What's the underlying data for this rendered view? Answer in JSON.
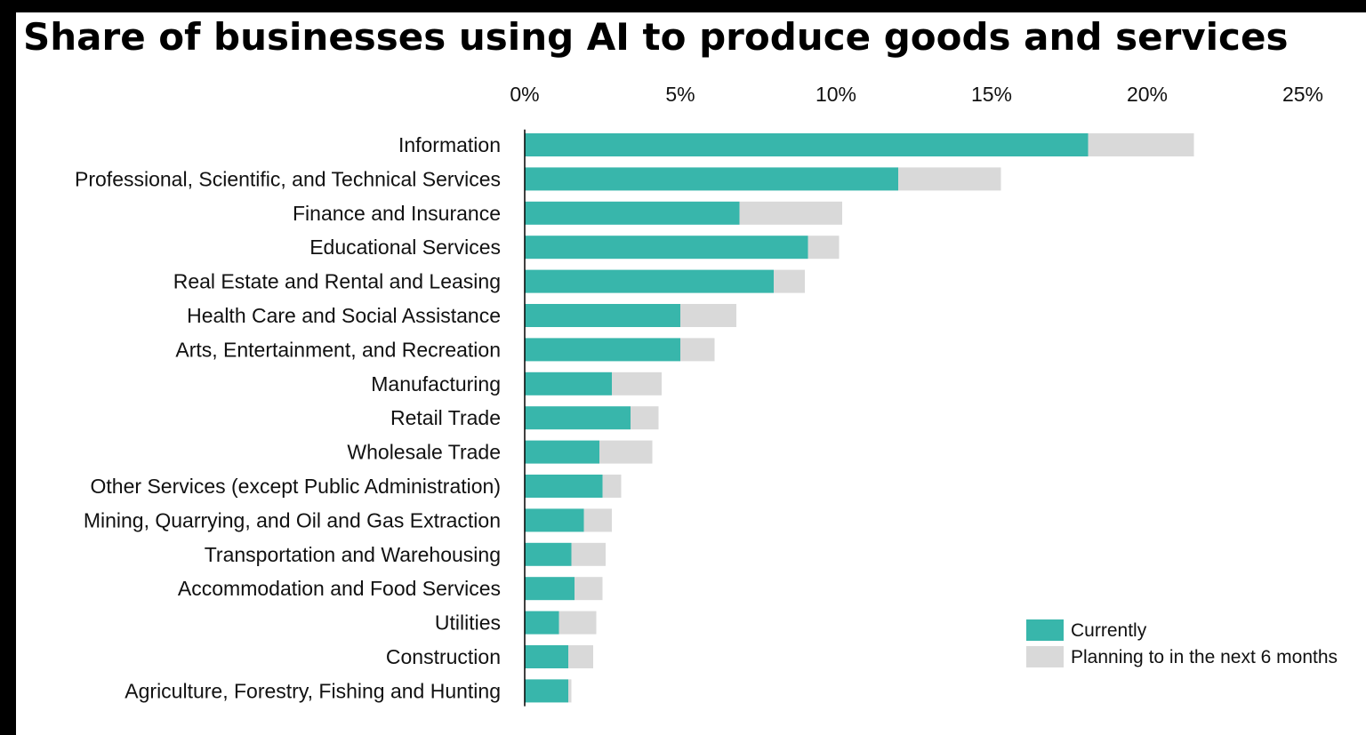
{
  "chart_data": {
    "type": "bar",
    "orientation": "horizontal",
    "stacked": true,
    "title": "Share of businesses using AI to produce goods and services",
    "xlabel": "",
    "ylabel": "",
    "xlim": [
      0,
      25
    ],
    "x_ticks": [
      0,
      5,
      10,
      15,
      20,
      25
    ],
    "x_tick_labels": [
      "0%",
      "5%",
      "10%",
      "15%",
      "20%",
      "25%"
    ],
    "x_axis_position": "top",
    "grid": false,
    "legend_position": "bottom-right",
    "categories": [
      "Information",
      "Professional, Scientific, and Technical Services",
      "Finance and Insurance",
      "Educational Services",
      "Real Estate and Rental and Leasing",
      "Health Care and Social Assistance",
      "Arts, Entertainment, and Recreation",
      "Manufacturing",
      "Retail Trade",
      "Wholesale Trade",
      "Other Services (except Public Administration)",
      "Mining, Quarrying, and Oil and Gas Extraction",
      "Transportation and Warehousing",
      "Accommodation and Food Services",
      "Utilities",
      "Construction",
      "Agriculture, Forestry, Fishing and Hunting"
    ],
    "series": [
      {
        "name": "Currently",
        "color": "#38b6ab",
        "values": [
          18.1,
          12.0,
          6.9,
          9.1,
          8.0,
          5.0,
          5.0,
          2.8,
          3.4,
          2.4,
          2.5,
          1.9,
          1.5,
          1.6,
          1.1,
          1.4,
          1.4
        ]
      },
      {
        "name": "Planning to in the next 6 months",
        "color": "#d9d9d9",
        "values": [
          3.4,
          3.3,
          3.3,
          1.0,
          1.0,
          1.8,
          1.1,
          1.6,
          0.9,
          1.7,
          0.6,
          0.9,
          1.1,
          0.9,
          1.2,
          0.8,
          0.1
        ]
      }
    ]
  }
}
